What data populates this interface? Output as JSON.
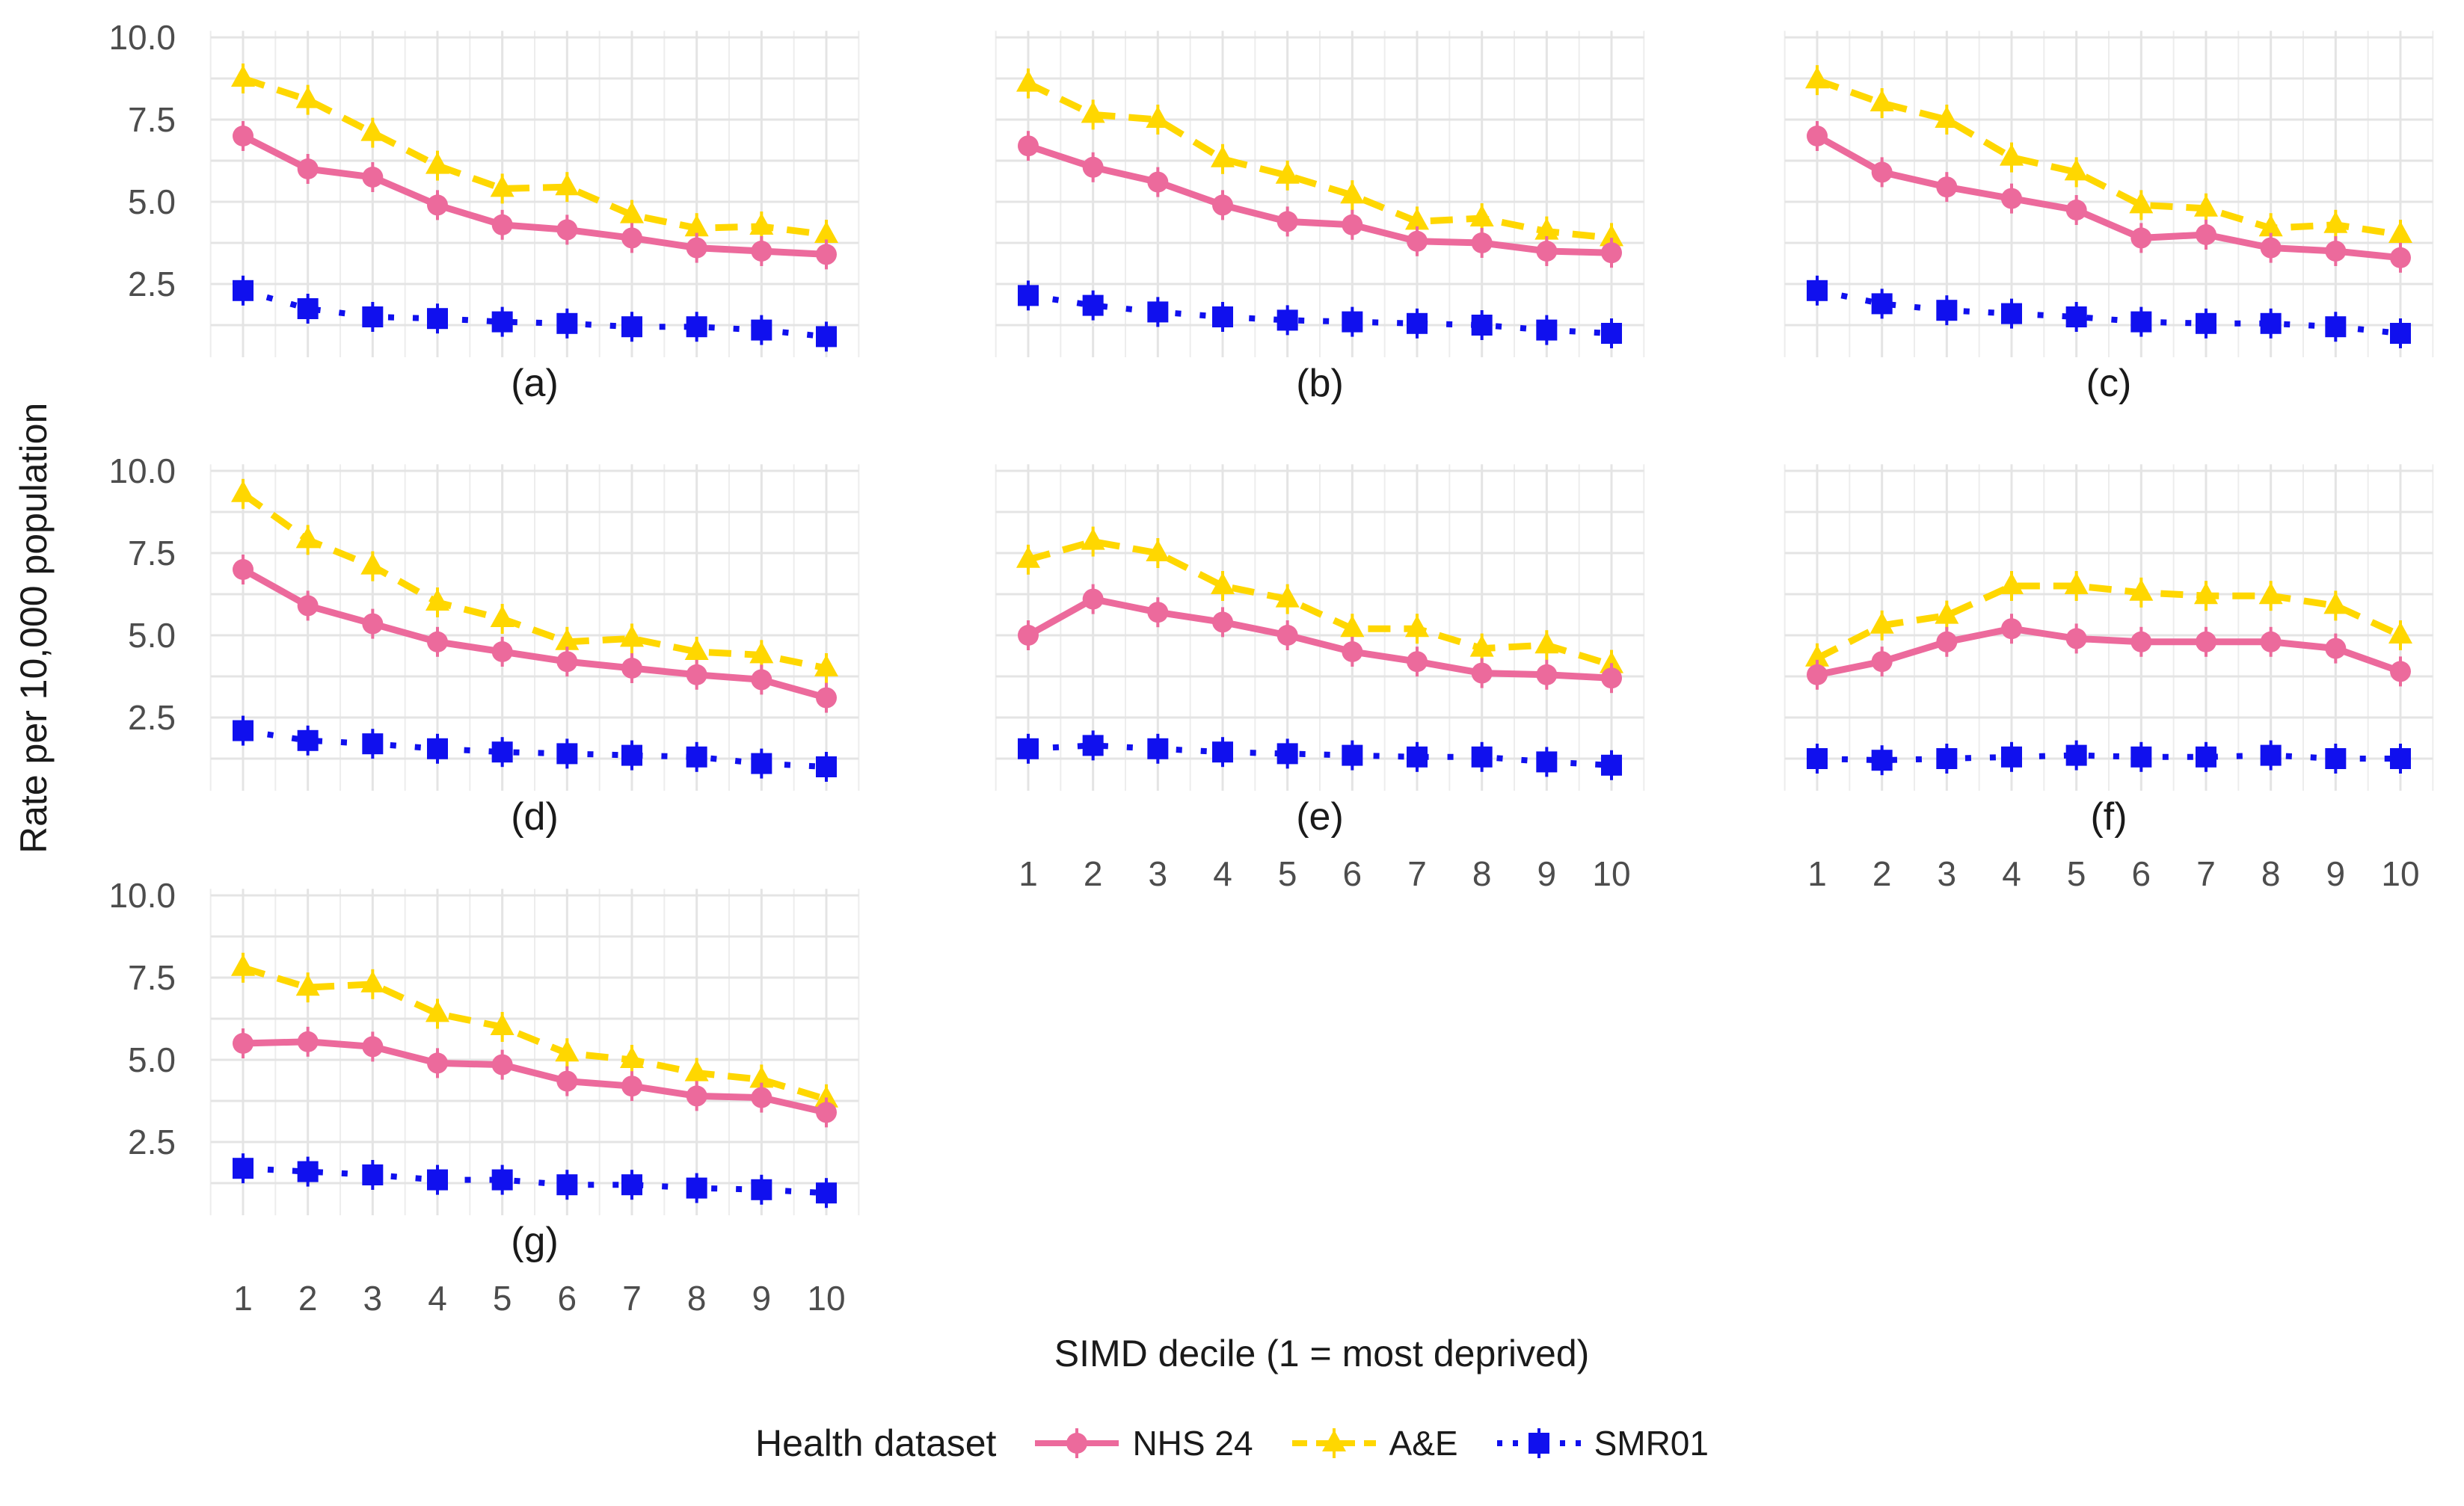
{
  "figure_title": "",
  "axes": {
    "y_title": "Rate per 10,000 population",
    "x_title": "SIMD decile (1 = most deprived)"
  },
  "legend": {
    "title": "Health dataset",
    "items": [
      "NHS 24",
      "A&E",
      "SMR01"
    ]
  },
  "chart_data": {
    "type": "line",
    "x": [
      1,
      2,
      3,
      4,
      5,
      6,
      7,
      8,
      9,
      10
    ],
    "xlabel": "SIMD decile (1 = most deprived)",
    "ylabel": "Rate per 10,000 population",
    "ylim": [
      0,
      10.5
    ],
    "yticks": [
      10.0,
      7.5,
      5.0,
      2.5
    ],
    "ytick_labels": [
      "10.0",
      "7.5",
      "5.0",
      "2.5"
    ],
    "grid": true,
    "legend_position": "bottom",
    "error_bars": "small vertical whiskers on every point",
    "series_styles": [
      {
        "name": "NHS 24",
        "color": "#EC6A9C",
        "marker": "circle",
        "line": "solid"
      },
      {
        "name": "A&E",
        "color": "#FFD700",
        "marker": "triangle",
        "line": "dashed"
      },
      {
        "name": "SMR01",
        "color": "#1010EE",
        "marker": "square",
        "line": "dotted"
      }
    ],
    "panels": [
      {
        "label": "(a)",
        "series": [
          {
            "name": "NHS 24",
            "values": [
              7.0,
              6.0,
              5.75,
              4.9,
              4.3,
              4.15,
              3.9,
              3.6,
              3.5,
              3.4
            ]
          },
          {
            "name": "A&E",
            "values": [
              8.75,
              8.1,
              7.1,
              6.1,
              5.4,
              5.45,
              4.6,
              4.2,
              4.25,
              4.0
            ]
          },
          {
            "name": "SMR01",
            "values": [
              2.3,
              1.75,
              1.5,
              1.45,
              1.35,
              1.3,
              1.2,
              1.2,
              1.1,
              0.9
            ]
          }
        ]
      },
      {
        "label": "(b)",
        "series": [
          {
            "name": "NHS 24",
            "values": [
              6.7,
              6.05,
              5.6,
              4.9,
              4.4,
              4.3,
              3.8,
              3.75,
              3.5,
              3.45
            ]
          },
          {
            "name": "A&E",
            "values": [
              8.6,
              7.65,
              7.5,
              6.3,
              5.8,
              5.2,
              4.4,
              4.5,
              4.1,
              3.9
            ]
          },
          {
            "name": "SMR01",
            "values": [
              2.15,
              1.85,
              1.65,
              1.5,
              1.4,
              1.35,
              1.3,
              1.25,
              1.1,
              1.0
            ]
          }
        ]
      },
      {
        "label": "(c)",
        "series": [
          {
            "name": "NHS 24",
            "values": [
              7.0,
              5.9,
              5.45,
              5.1,
              4.75,
              3.9,
              4.0,
              3.6,
              3.5,
              3.3
            ]
          },
          {
            "name": "A&E",
            "values": [
              8.7,
              8.0,
              7.5,
              6.35,
              5.9,
              4.9,
              4.8,
              4.2,
              4.3,
              4.0
            ]
          },
          {
            "name": "SMR01",
            "values": [
              2.3,
              1.9,
              1.7,
              1.6,
              1.5,
              1.35,
              1.3,
              1.3,
              1.2,
              1.0
            ]
          }
        ]
      },
      {
        "label": "(d)",
        "series": [
          {
            "name": "NHS 24",
            "values": [
              7.0,
              5.9,
              5.35,
              4.8,
              4.5,
              4.2,
              4.0,
              3.8,
              3.65,
              3.1
            ]
          },
          {
            "name": "A&E",
            "values": [
              9.3,
              7.9,
              7.1,
              6.0,
              5.5,
              4.8,
              4.9,
              4.5,
              4.4,
              4.0
            ]
          },
          {
            "name": "SMR01",
            "values": [
              2.1,
              1.8,
              1.7,
              1.55,
              1.45,
              1.4,
              1.35,
              1.3,
              1.1,
              1.0
            ]
          }
        ]
      },
      {
        "label": "(e)",
        "series": [
          {
            "name": "NHS 24",
            "values": [
              5.0,
              6.1,
              5.7,
              5.4,
              5.0,
              4.5,
              4.2,
              3.85,
              3.8,
              3.7
            ]
          },
          {
            "name": "A&E",
            "values": [
              7.3,
              7.85,
              7.5,
              6.5,
              6.1,
              5.2,
              5.2,
              4.6,
              4.7,
              4.1
            ]
          },
          {
            "name": "SMR01",
            "values": [
              1.55,
              1.65,
              1.55,
              1.45,
              1.4,
              1.35,
              1.3,
              1.3,
              1.15,
              1.05
            ]
          }
        ]
      },
      {
        "label": "(f)",
        "series": [
          {
            "name": "NHS 24",
            "values": [
              3.8,
              4.2,
              4.8,
              5.2,
              4.9,
              4.8,
              4.8,
              4.8,
              4.6,
              3.9
            ]
          },
          {
            "name": "A&E",
            "values": [
              4.3,
              5.3,
              5.6,
              6.5,
              6.5,
              6.3,
              6.2,
              6.2,
              5.9,
              5.0
            ]
          },
          {
            "name": "SMR01",
            "values": [
              1.25,
              1.2,
              1.25,
              1.3,
              1.35,
              1.3,
              1.3,
              1.35,
              1.25,
              1.25
            ]
          }
        ]
      },
      {
        "label": "(g)",
        "series": [
          {
            "name": "NHS 24",
            "values": [
              5.5,
              5.55,
              5.4,
              4.9,
              4.85,
              4.35,
              4.2,
              3.9,
              3.85,
              3.4
            ]
          },
          {
            "name": "A&E",
            "values": [
              7.8,
              7.2,
              7.3,
              6.4,
              6.0,
              5.2,
              5.0,
              4.6,
              4.4,
              3.8
            ]
          },
          {
            "name": "SMR01",
            "values": [
              1.7,
              1.6,
              1.5,
              1.35,
              1.35,
              1.2,
              1.2,
              1.1,
              1.05,
              0.95
            ]
          }
        ]
      }
    ]
  },
  "colors": {
    "background": "#ffffff",
    "grid_major": "#e4e4e4",
    "grid_minor": "#ededed",
    "tick_text": "#4d4d4d",
    "label_text": "#1a1a1a"
  }
}
